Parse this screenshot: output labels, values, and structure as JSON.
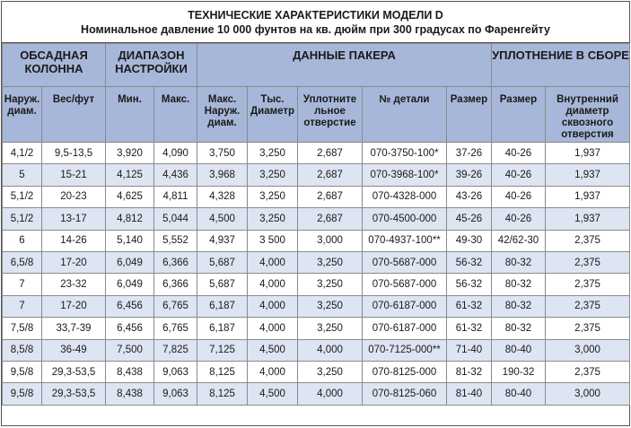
{
  "title": {
    "line1": "ТЕХНИЧЕСКИЕ ХАРАКТЕРИСТИКИ МОДЕЛИ D",
    "line2": "Номинальное давление 10 000 фунтов на кв. дюйм при 300 градусах по Фаренгейту"
  },
  "groups": {
    "casing": "ОБСАДНАЯ КОЛОННА",
    "setting_range": "ДИАПАЗОН НАСТРОЙКИ",
    "packer": "ДАННЫЕ ПАКЕРА",
    "seal": "УПЛОТНЕНИЕ В СБОРЕ"
  },
  "columns": {
    "od": "Наруж. диам.",
    "weight": "Вес/фут",
    "min": "Мин.",
    "max": "Макс.",
    "max_od": "Макс. Наруж. диам.",
    "thou_diam": "Тыс. Диаметр",
    "seal_bore": "Уплотните льное отверстие",
    "part_no": "№ детали",
    "size1": "Размер",
    "size2": "Размер",
    "inner_bore": "Внутренний диаметр сквозного отверстия"
  },
  "rows": [
    [
      "4,1/2",
      "9,5-13,5",
      "3,920",
      "4,090",
      "3,750",
      "3,250",
      "2,687",
      "070-3750-100*",
      "37-26",
      "40-26",
      "1,937"
    ],
    [
      "5",
      "15-21",
      "4,125",
      "4,436",
      "3,968",
      "3,250",
      "2,687",
      "070-3968-100*",
      "39-26",
      "40-26",
      "1,937"
    ],
    [
      "5,1/2",
      "20-23",
      "4,625",
      "4,811",
      "4,328",
      "3,250",
      "2,687",
      "070-4328-000",
      "43-26",
      "40-26",
      "1,937"
    ],
    [
      "5,1/2",
      "13-17",
      "4,812",
      "5,044",
      "4,500",
      "3,250",
      "2,687",
      "070-4500-000",
      "45-26",
      "40-26",
      "1,937"
    ],
    [
      "6",
      "14-26",
      "5,140",
      "5,552",
      "4,937",
      "3 500",
      "3,000",
      "070-4937-100**",
      "49-30",
      "42/62-30",
      "2,375"
    ],
    [
      "6,5/8",
      "17-20",
      "6,049",
      "6,366",
      "5,687",
      "4,000",
      "3,250",
      "070-5687-000",
      "56-32",
      "80-32",
      "2,375"
    ],
    [
      "7",
      "23-32",
      "6,049",
      "6,366",
      "5,687",
      "4,000",
      "3,250",
      "070-5687-000",
      "56-32",
      "80-32",
      "2,375"
    ],
    [
      "7",
      "17-20",
      "6,456",
      "6,765",
      "6,187",
      "4,000",
      "3,250",
      "070-6187-000",
      "61-32",
      "80-32",
      "2,375"
    ],
    [
      "7,5/8",
      "33,7-39",
      "6,456",
      "6,765",
      "6,187",
      "4,000",
      "3,250",
      "070-6187-000",
      "61-32",
      "80-32",
      "2,375"
    ],
    [
      "8,5/8",
      "36-49",
      "7,500",
      "7,825",
      "7,125",
      "4,500",
      "4,000",
      "070-7125-000**",
      "71-40",
      "80-40",
      "3,000"
    ],
    [
      "9,5/8",
      "29,3-53,5",
      "8,438",
      "9,063",
      "8,125",
      "4,000",
      "3,250",
      "070-8125-000",
      "81-32",
      "190-32",
      "2,375"
    ],
    [
      "9,5/8",
      "29,3-53,5",
      "8,438",
      "9,063",
      "8,125",
      "4,500",
      "4,000",
      "070-8125-060",
      "81-40",
      "80-40",
      "3,000"
    ]
  ]
}
